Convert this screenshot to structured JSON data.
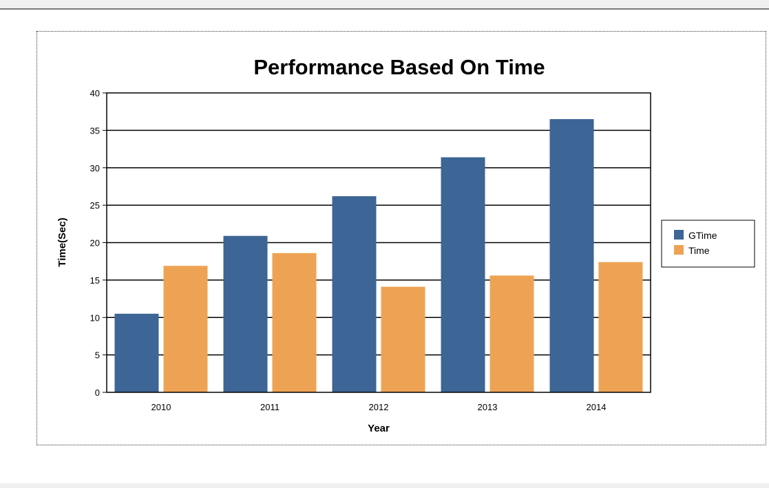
{
  "chart_data": {
    "type": "bar",
    "title": "Performance Based On Time",
    "xlabel": "Year",
    "ylabel": "Time(Sec)",
    "categories": [
      "2010",
      "2011",
      "2012",
      "2013",
      "2014"
    ],
    "series": [
      {
        "name": "GTime",
        "color": "#3d6595",
        "values": [
          10.5,
          20.9,
          26.2,
          31.4,
          36.5
        ]
      },
      {
        "name": "Time",
        "color": "#eea354",
        "values": [
          16.9,
          18.6,
          14.1,
          15.6,
          17.4
        ]
      }
    ],
    "ylim": [
      0,
      40
    ],
    "yticks": [
      "0",
      "5",
      "10",
      "15",
      "20",
      "25",
      "30",
      "35",
      "40"
    ],
    "grid": true,
    "legend_position": "right"
  }
}
